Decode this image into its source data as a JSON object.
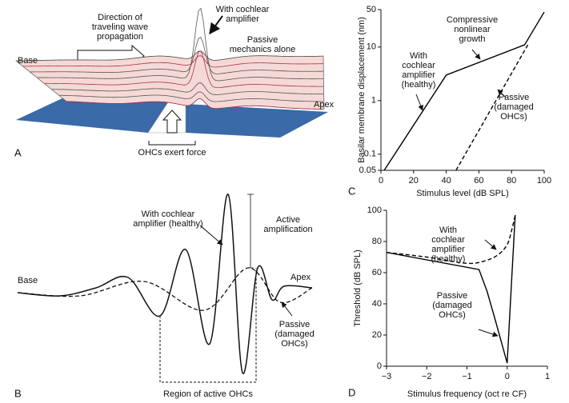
{
  "panel_a": {
    "letter": "A",
    "direction_label": [
      "Direction of",
      "traveling wave",
      "propagation"
    ],
    "amplifier_label": [
      "With cochlear",
      "amplifier"
    ],
    "passive_label": [
      "Passive",
      "mechanics alone"
    ],
    "base": "Base",
    "apex": "Apex",
    "force_label": "OHCs exert force"
  },
  "panel_b": {
    "letter": "B",
    "amplifier_label": [
      "With cochlear",
      "amplifier (healthy)"
    ],
    "active_label": [
      "Active",
      "amplification"
    ],
    "base": "Base",
    "apex": "Apex",
    "passive_label": [
      "Passive",
      "(damaged",
      "OHCs)"
    ],
    "region_label": "Region of active OHCs"
  },
  "chart_data": [
    {
      "type": "line",
      "letter": "C",
      "x_label": "Stimulus level (dB SPL)",
      "y_label": "Basilar membrane displacement (nm)",
      "xlim": [
        0,
        100
      ],
      "xticks": [
        0,
        20,
        40,
        60,
        80,
        100
      ],
      "ylim": [
        0.05,
        50
      ],
      "yticks": [
        0.05,
        0.1,
        1,
        10,
        50
      ],
      "log_y": true,
      "annotations": [
        {
          "text": [
            "Compressive",
            "nonlinear",
            "growth"
          ]
        }
      ],
      "series": [
        {
          "label": [
            "With",
            "cochlear",
            "amplifier",
            "(healthy)"
          ],
          "color": "#000000",
          "dashed": false,
          "x": [
            2,
            40,
            88,
            100
          ],
          "values": [
            0.05,
            3,
            11,
            45
          ]
        },
        {
          "label": [
            "Passive",
            "(damaged",
            "OHCs)"
          ],
          "color": "#000000",
          "dashed": true,
          "x": [
            46,
            90
          ],
          "values": [
            0.05,
            11
          ]
        }
      ]
    },
    {
      "type": "line",
      "letter": "D",
      "x_label": "Stimulus frequency (oct re CF)",
      "y_label": "Threshold (dB SPL)",
      "xlim": [
        -3,
        1
      ],
      "xticks": [
        {
          "value": -3,
          "label": "−3"
        },
        {
          "value": -2,
          "label": "−2"
        },
        {
          "value": -1,
          "label": "−1"
        },
        0,
        1
      ],
      "ylim": [
        0,
        100
      ],
      "yticks": [
        0,
        20,
        40,
        60,
        80,
        100
      ],
      "log_y": false,
      "annotations": [],
      "series": [
        {
          "label": [
            "Passive",
            "(damaged",
            "OHCs)"
          ],
          "color": "#000000",
          "dashed": true,
          "smooth": true,
          "x": [
            -3,
            -2,
            -1,
            -0.5,
            -0.2,
            0,
            0.1,
            0.2
          ],
          "values": [
            73,
            70,
            66,
            68,
            72,
            78,
            86,
            97
          ]
        },
        {
          "label": [
            "With",
            "cochlear",
            "amplifier",
            "(healthy)"
          ],
          "color": "#000000",
          "dashed": false,
          "x": [
            -3,
            -0.7,
            -0.5,
            -0.3,
            0,
            0.1,
            0.2
          ],
          "values": [
            73,
            62,
            48,
            30,
            2,
            50,
            97
          ]
        }
      ]
    }
  ]
}
